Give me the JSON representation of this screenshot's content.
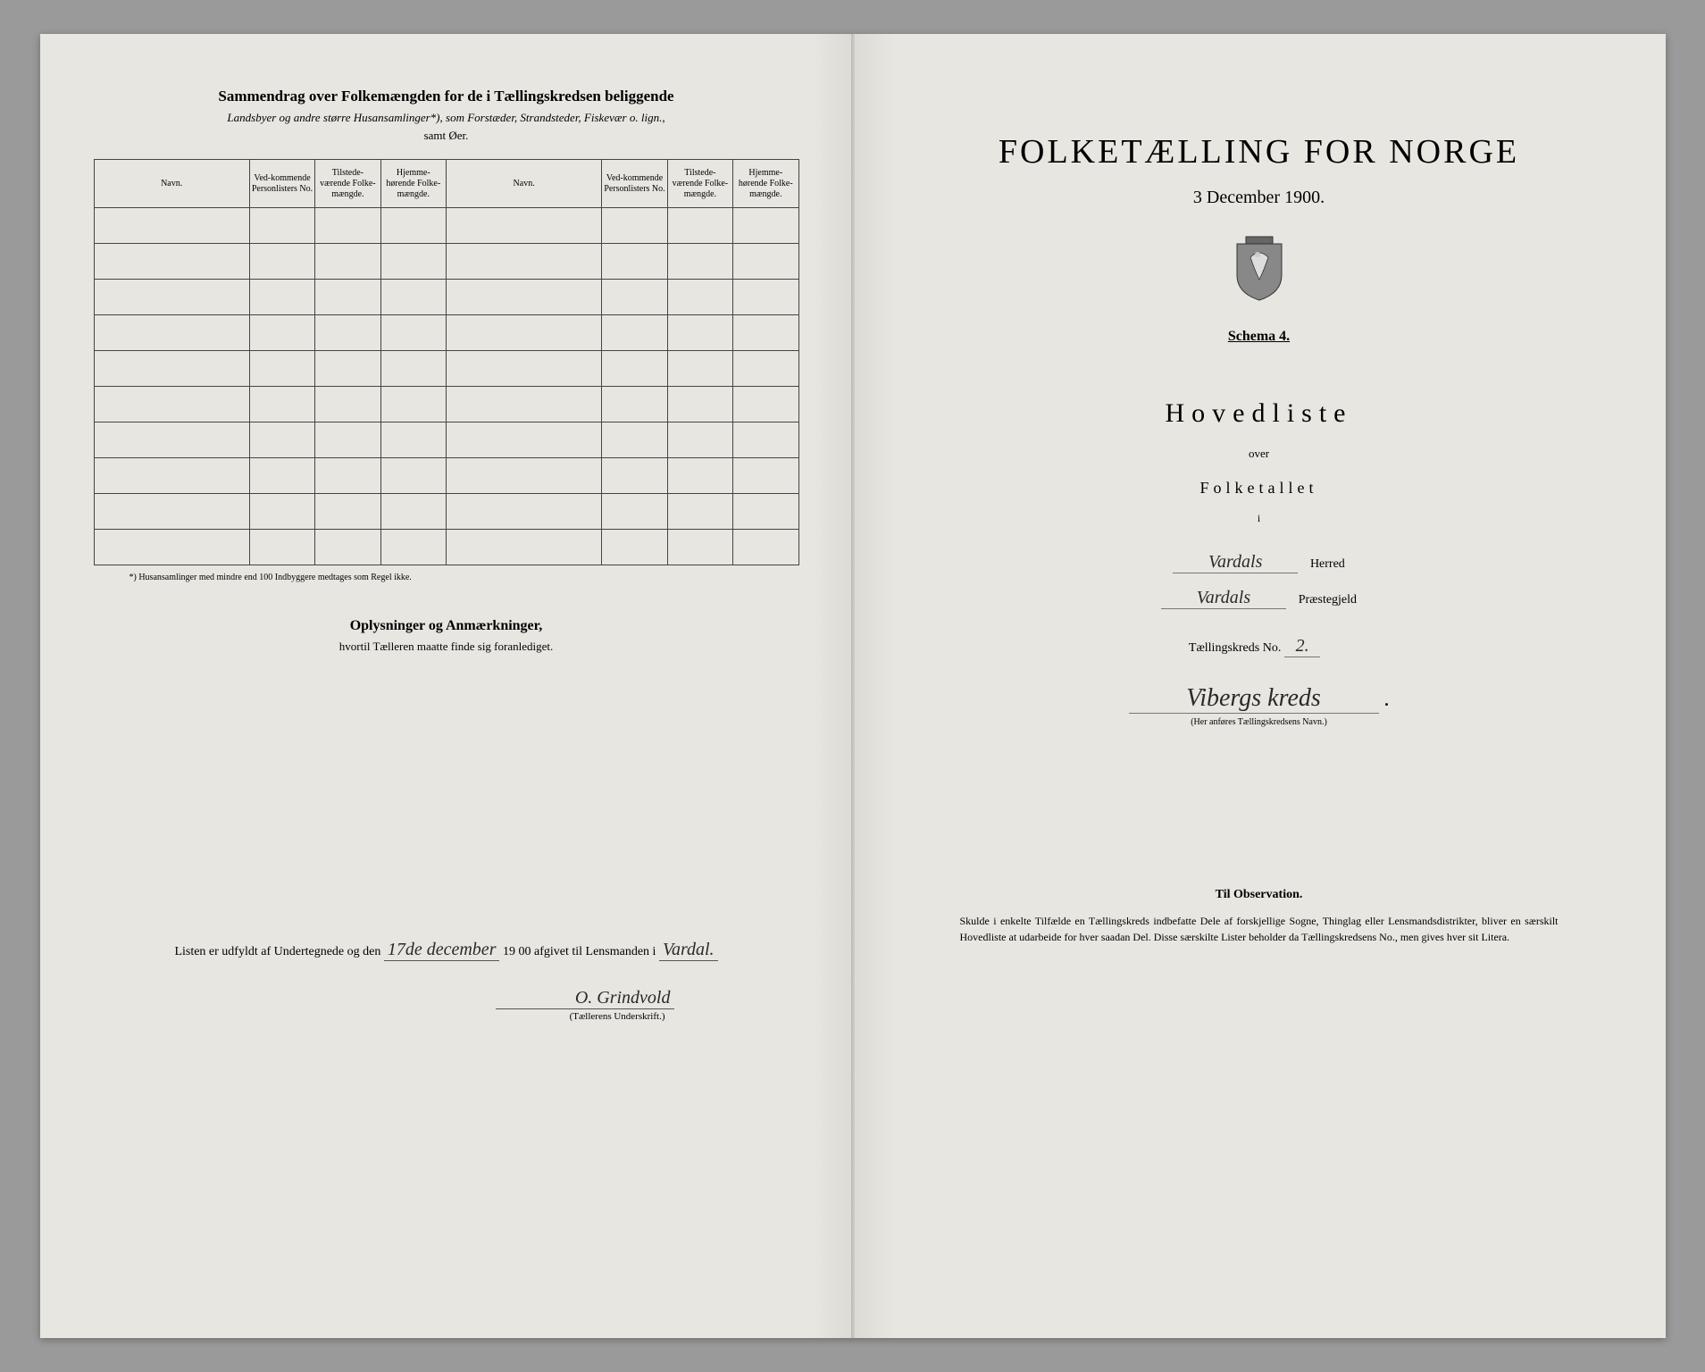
{
  "colors": {
    "background": "#9a9a9a",
    "paper": "#e8e6e0",
    "ink": "#2a2a2a",
    "border": "#444444"
  },
  "leftPage": {
    "title": "Sammendrag over Folkemængden for de i Tællingskredsen beliggende",
    "subtitle": "Landsbyer og andre større Husansamlinger*), som Forstæder, Strandsteder, Fiskevær o. lign.,",
    "subtitle2": "samt Øer.",
    "table": {
      "headers": [
        "Navn.",
        "Ved-kommende Personlisters No.",
        "Tilstede-værende Folke-mængde.",
        "Hjemme-hørende Folke-mængde.",
        "Navn.",
        "Ved-kommende Personlisters No.",
        "Tilstede-værende Folke-mængde.",
        "Hjemme-hørende Folke-mængde."
      ],
      "rowCount": 10
    },
    "footnote": "*) Husansamlinger med mindre end 100 Indbyggere medtages som Regel ikke.",
    "oplysningerTitle": "Oplysninger og Anmærkninger,",
    "oplysningerSub": "hvortil Tælleren maatte finde sig foranlediget.",
    "listenPrefix": "Listen er udfyldt af Undertegnede og den",
    "listenDate": "17de december",
    "listenYear": "19 00 afgivet til Lensmanden i",
    "listenPlace": "Vardal.",
    "signature": "O. Grindvold",
    "signatureLabel": "(Tællerens Underskrift.)"
  },
  "rightPage": {
    "mainTitle": "FOLKETÆLLING FOR NORGE",
    "date": "3 December 1900.",
    "schema": "Schema 4.",
    "hovedliste": "Hovedliste",
    "over": "over",
    "folketallet": "Folketallet",
    "i": "i",
    "herred": "Vardals",
    "herredLabel": "Herred",
    "praestegjeld": "Vardals",
    "praestegjeldLabel": "Præstegjeld",
    "taellingskredsLabel": "Tællingskreds No.",
    "taellingskredsNo": "2.",
    "kredsName": "Vibergs kreds",
    "kredsNote": "(Her anføres Tællingskredsens Navn.)",
    "observationTitle": "Til Observation.",
    "observationText": "Skulde i enkelte Tilfælde en Tællingskreds indbefatte Dele af forskjellige Sogne, Thinglag eller Lensmandsdistrikter, bliver en særskilt Hovedliste at udarbeide for hver saadan Del. Disse særskilte Lister beholder da Tællingskredsens No., men gives hver sit Litera."
  }
}
